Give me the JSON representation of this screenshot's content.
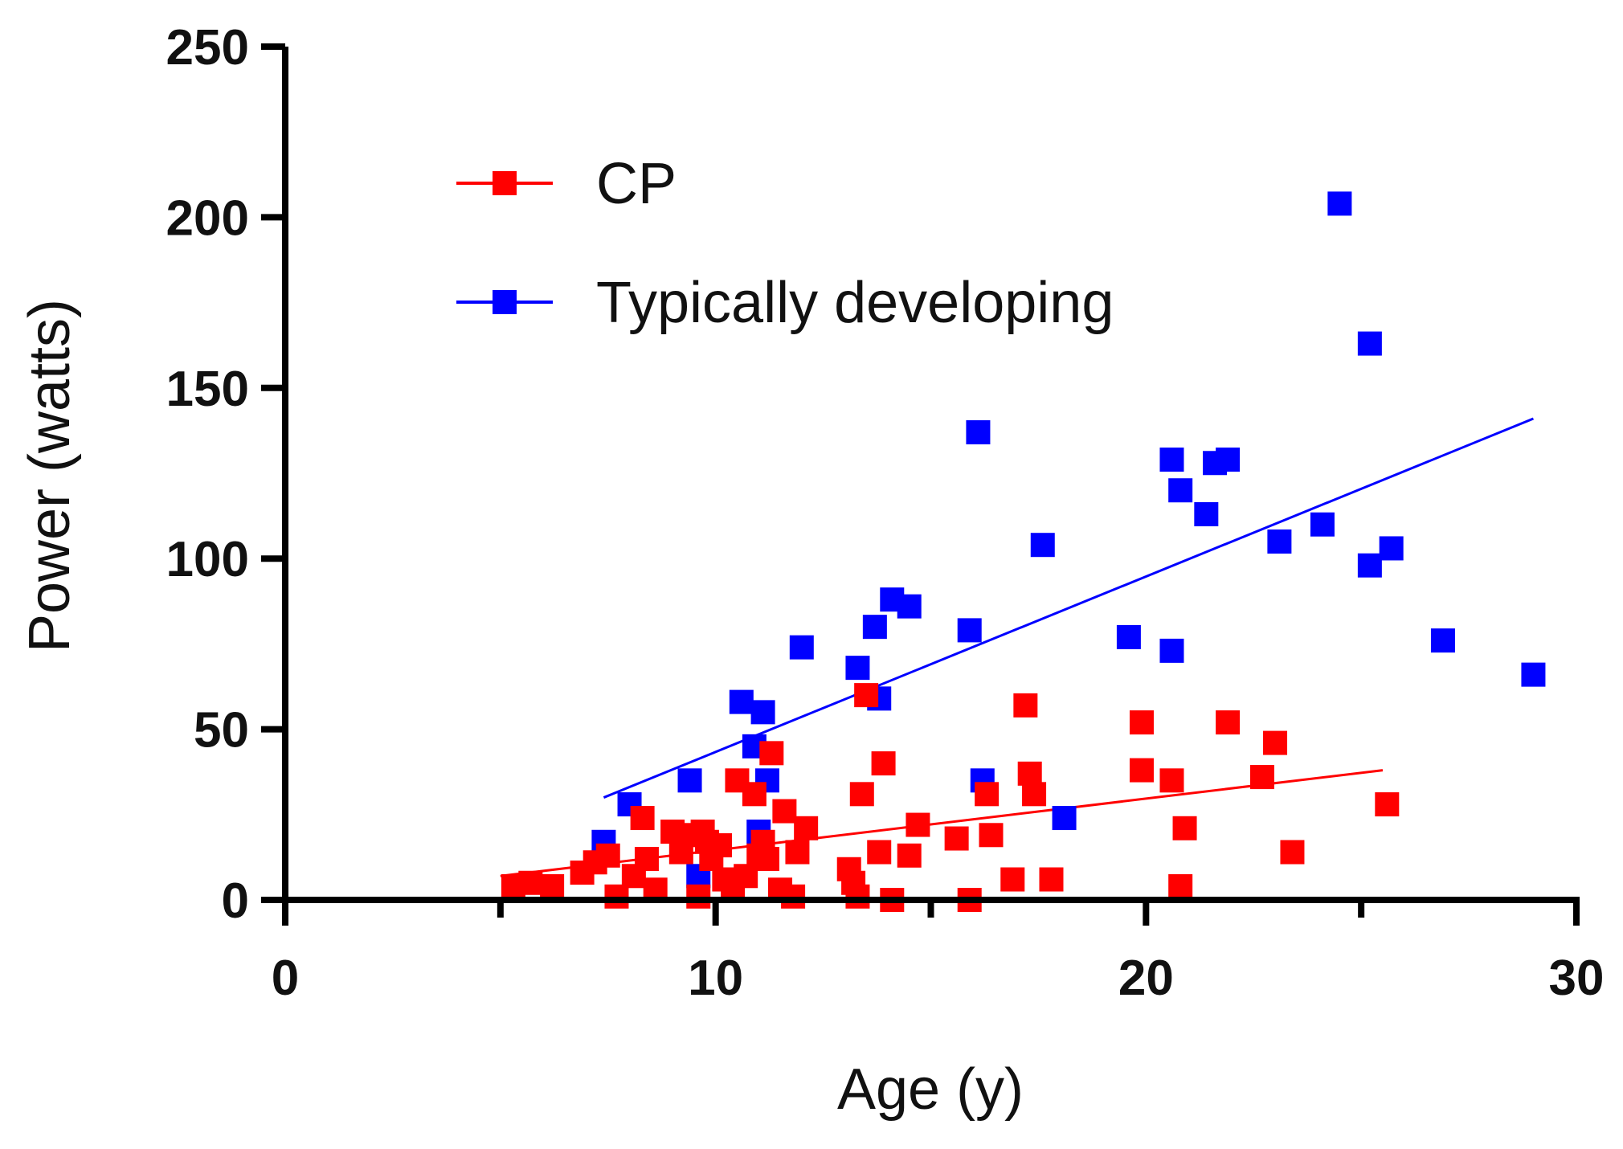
{
  "chart_data": {
    "type": "scatter",
    "title": "",
    "xlabel": "Age (y)",
    "ylabel": "Power (watts)",
    "xlim": [
      0,
      30
    ],
    "ylim": [
      0,
      250
    ],
    "xticks": [
      0,
      10,
      20,
      30
    ],
    "yticks": [
      0,
      50,
      100,
      150,
      200,
      250
    ],
    "grid": false,
    "legend_position": "top-left",
    "series": [
      {
        "name": "CP",
        "color": "#ff0000",
        "marker": "square",
        "trendline": {
          "x": [
            5,
            25.5
          ],
          "y": [
            7,
            38
          ]
        },
        "points": [
          [
            5.3,
            4
          ],
          [
            5.7,
            5
          ],
          [
            6.2,
            4
          ],
          [
            6.9,
            8
          ],
          [
            7.2,
            11
          ],
          [
            7.5,
            13
          ],
          [
            7.7,
            1
          ],
          [
            8.1,
            7
          ],
          [
            8.3,
            24
          ],
          [
            8.4,
            12
          ],
          [
            8.6,
            3
          ],
          [
            9.0,
            20
          ],
          [
            9.2,
            14
          ],
          [
            9.4,
            19
          ],
          [
            9.6,
            1
          ],
          [
            9.7,
            20
          ],
          [
            9.8,
            17
          ],
          [
            9.9,
            12
          ],
          [
            10.1,
            16
          ],
          [
            10.2,
            6
          ],
          [
            10.4,
            3
          ],
          [
            10.5,
            35
          ],
          [
            10.7,
            7
          ],
          [
            10.9,
            31
          ],
          [
            11.0,
            13
          ],
          [
            11.1,
            17
          ],
          [
            11.2,
            12
          ],
          [
            11.3,
            43
          ],
          [
            11.5,
            3
          ],
          [
            11.6,
            26
          ],
          [
            11.8,
            1
          ],
          [
            11.9,
            14
          ],
          [
            12.1,
            21
          ],
          [
            13.1,
            9
          ],
          [
            13.2,
            5
          ],
          [
            13.3,
            1
          ],
          [
            13.4,
            31
          ],
          [
            13.5,
            60
          ],
          [
            13.8,
            14
          ],
          [
            13.9,
            40
          ],
          [
            14.1,
            0
          ],
          [
            14.5,
            13
          ],
          [
            14.7,
            22
          ],
          [
            15.6,
            18
          ],
          [
            15.9,
            0
          ],
          [
            16.3,
            31
          ],
          [
            16.4,
            19
          ],
          [
            16.9,
            6
          ],
          [
            17.2,
            57
          ],
          [
            17.3,
            37
          ],
          [
            17.4,
            31
          ],
          [
            17.8,
            6
          ],
          [
            19.9,
            52
          ],
          [
            19.9,
            38
          ],
          [
            20.6,
            35
          ],
          [
            20.8,
            4
          ],
          [
            20.9,
            21
          ],
          [
            21.9,
            52
          ],
          [
            22.7,
            36
          ],
          [
            23.0,
            46
          ],
          [
            23.4,
            14
          ],
          [
            25.6,
            28
          ]
        ]
      },
      {
        "name": "Typically developing",
        "color": "#0000ff",
        "marker": "square",
        "trendline": {
          "x": [
            7.4,
            29
          ],
          "y": [
            30,
            141
          ]
        },
        "points": [
          [
            7.4,
            17
          ],
          [
            8.0,
            28
          ],
          [
            9.4,
            35
          ],
          [
            9.6,
            7
          ],
          [
            10.6,
            58
          ],
          [
            10.9,
            45
          ],
          [
            11.0,
            20
          ],
          [
            11.1,
            55
          ],
          [
            11.2,
            35
          ],
          [
            12.0,
            74
          ],
          [
            13.3,
            68
          ],
          [
            13.7,
            80
          ],
          [
            13.8,
            59
          ],
          [
            14.1,
            88
          ],
          [
            14.5,
            86
          ],
          [
            15.9,
            79
          ],
          [
            16.1,
            137
          ],
          [
            16.2,
            35
          ],
          [
            17.6,
            104
          ],
          [
            18.1,
            24
          ],
          [
            19.6,
            77
          ],
          [
            20.6,
            129
          ],
          [
            20.6,
            73
          ],
          [
            20.8,
            120
          ],
          [
            21.4,
            113
          ],
          [
            21.6,
            128
          ],
          [
            21.9,
            129
          ],
          [
            23.1,
            105
          ],
          [
            24.1,
            110
          ],
          [
            24.5,
            204
          ],
          [
            25.2,
            98
          ],
          [
            25.2,
            163
          ],
          [
            25.7,
            103
          ],
          [
            26.9,
            76
          ],
          [
            29.0,
            66
          ]
        ]
      }
    ]
  }
}
